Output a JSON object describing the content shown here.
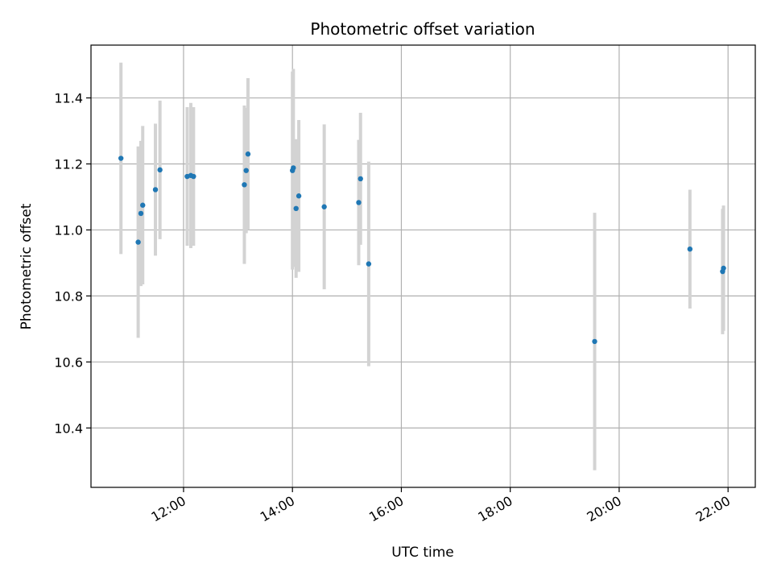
{
  "chart_data": {
    "type": "scatter",
    "title": "Photometric offset variation",
    "xlabel": "UTC time",
    "ylabel": "Photometric offset",
    "x_axis_kind": "time",
    "xlim": [
      "10:18",
      "22:30"
    ],
    "ylim": [
      10.22,
      11.56
    ],
    "xticks": [
      "12:00",
      "14:00",
      "16:00",
      "18:00",
      "20:00",
      "22:00"
    ],
    "yticks": [
      "10.4",
      "10.6",
      "10.8",
      "11.0",
      "11.2",
      "11.4"
    ],
    "grid": true,
    "colors": {
      "point": "#1f77b4",
      "errorbar": "#d3d3d3",
      "grid": "#b0b0b0"
    },
    "points": [
      {
        "x": "10:51",
        "y": 11.217,
        "err": 0.29
      },
      {
        "x": "11:10",
        "y": 10.963,
        "err": 0.29
      },
      {
        "x": "11:13",
        "y": 11.05,
        "err": 0.22
      },
      {
        "x": "11:15",
        "y": 11.075,
        "err": 0.24
      },
      {
        "x": "11:29",
        "y": 11.122,
        "err": 0.2
      },
      {
        "x": "11:34",
        "y": 11.182,
        "err": 0.21
      },
      {
        "x": "12:04",
        "y": 11.162,
        "err": 0.21
      },
      {
        "x": "12:08",
        "y": 11.165,
        "err": 0.22
      },
      {
        "x": "12:11",
        "y": 11.162,
        "err": 0.21
      },
      {
        "x": "13:07",
        "y": 11.137,
        "err": 0.24
      },
      {
        "x": "13:09",
        "y": 11.18,
        "err": 0.19
      },
      {
        "x": "13:11",
        "y": 11.23,
        "err": 0.23
      },
      {
        "x": "14:00",
        "y": 11.18,
        "err": 0.3
      },
      {
        "x": "14:01",
        "y": 11.188,
        "err": 0.3
      },
      {
        "x": "14:04",
        "y": 11.065,
        "err": 0.21
      },
      {
        "x": "14:07",
        "y": 11.103,
        "err": 0.23
      },
      {
        "x": "14:35",
        "y": 11.07,
        "err": 0.25
      },
      {
        "x": "15:13",
        "y": 11.083,
        "err": 0.19
      },
      {
        "x": "15:15",
        "y": 11.155,
        "err": 0.2
      },
      {
        "x": "15:24",
        "y": 10.897,
        "err": 0.31
      },
      {
        "x": "19:33",
        "y": 10.662,
        "err": 0.39
      },
      {
        "x": "21:18",
        "y": 10.942,
        "err": 0.18
      },
      {
        "x": "21:54",
        "y": 10.874,
        "err": 0.19
      },
      {
        "x": "21:55",
        "y": 10.884,
        "err": 0.19
      }
    ]
  }
}
